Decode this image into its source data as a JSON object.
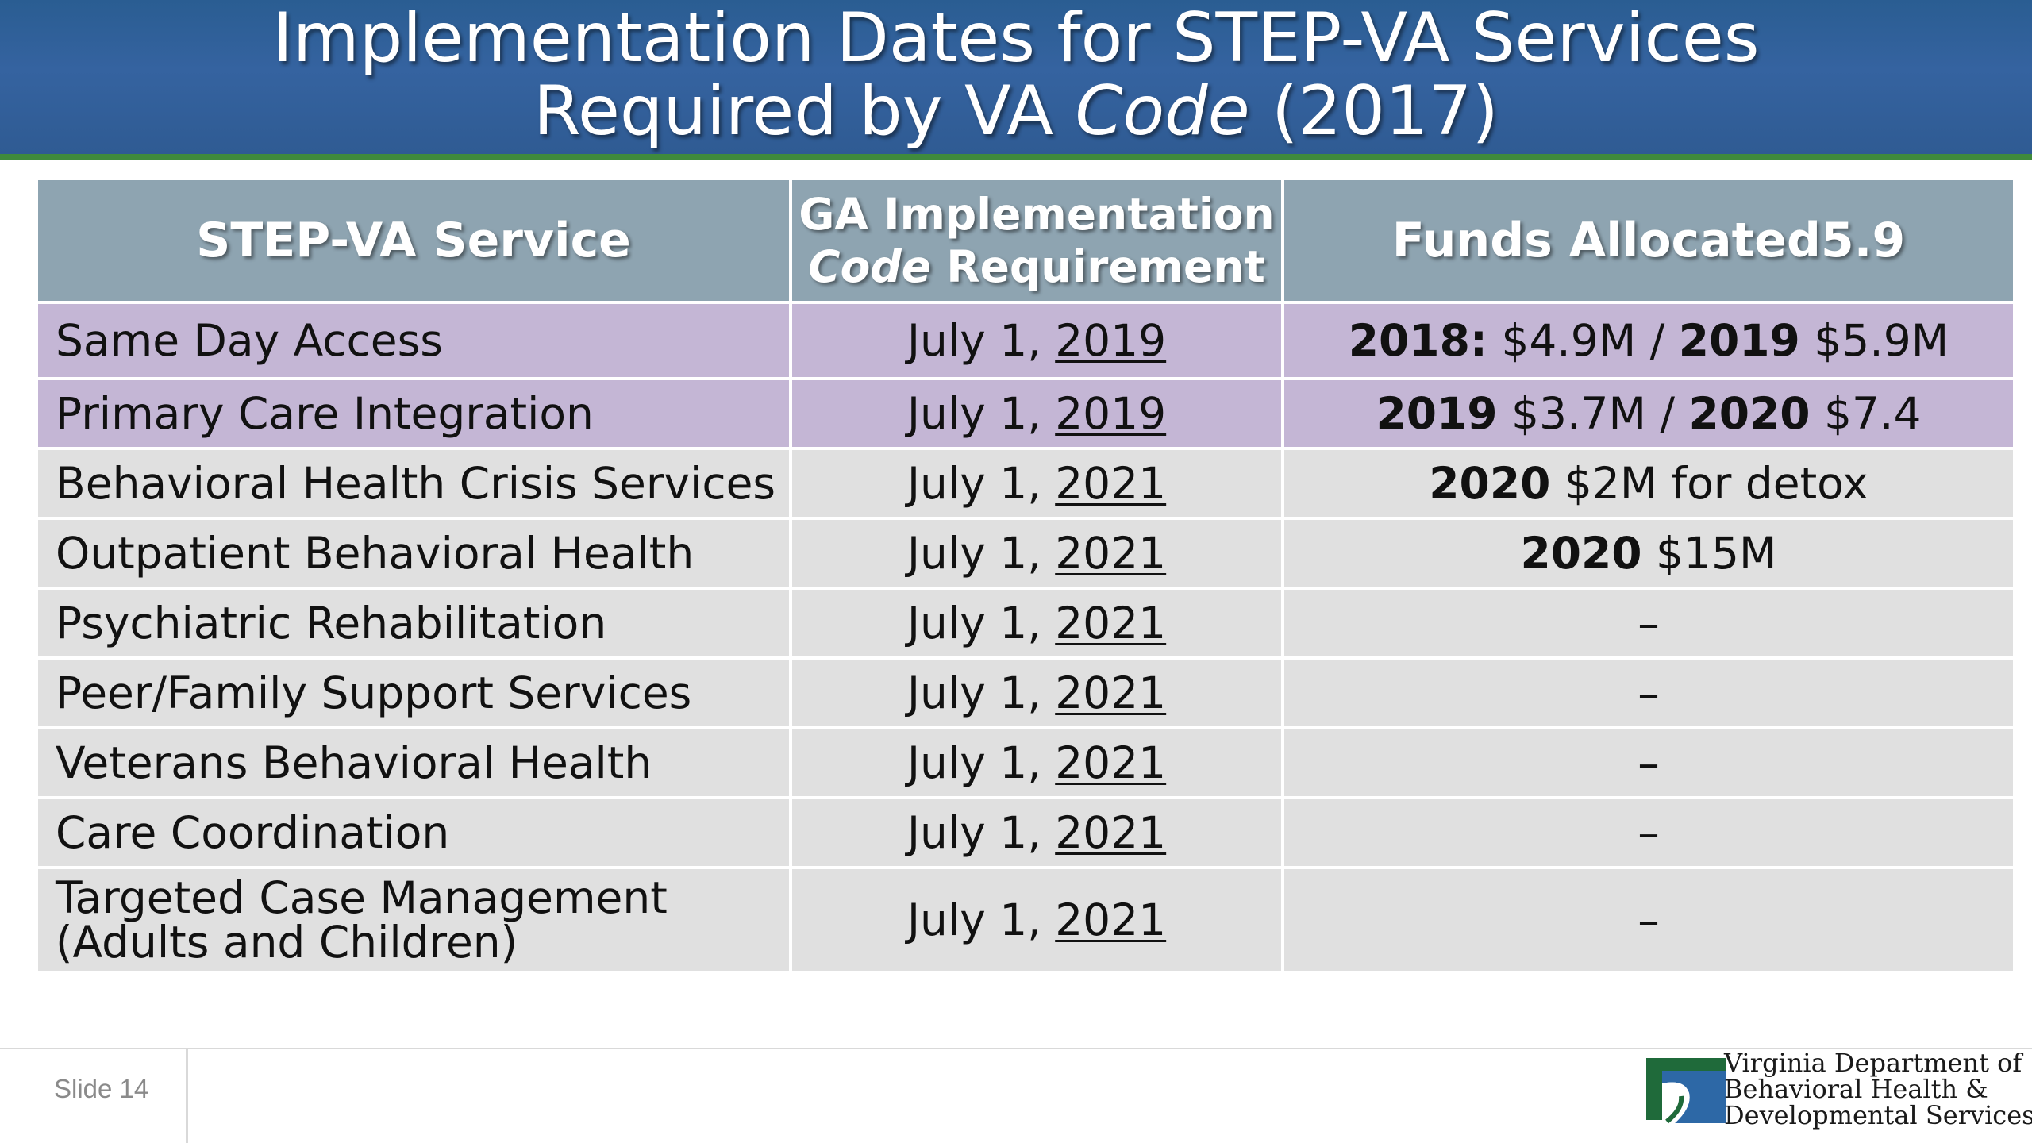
{
  "title": {
    "line1": "Implementation Dates for STEP-VA Services",
    "line2_prefix": "Required by VA ",
    "line2_italic": "Code",
    "line2_suffix": " (2017)"
  },
  "table": {
    "headers": {
      "service": "STEP-VA Service",
      "implementation_line1": "GA Implementation",
      "implementation_italic": "Code",
      "implementation_line2": " Requirement",
      "funds": "Funds Allocated5.9"
    },
    "rows": [
      {
        "service": "Same Day Access",
        "date_prefix": "July 1, ",
        "date_year": "2019",
        "funds": [
          {
            "text": "2018:",
            "bold": true
          },
          {
            "text": " $4.9M / ",
            "bold": false
          },
          {
            "text": "2019",
            "bold": true
          },
          {
            "text": " $5.9M",
            "bold": false
          }
        ],
        "highlight": true
      },
      {
        "service": "Primary Care Integration",
        "date_prefix": "July 1, ",
        "date_year": "2019",
        "funds": [
          {
            "text": "2019",
            "bold": true
          },
          {
            "text": " $3.7M / ",
            "bold": false
          },
          {
            "text": "2020",
            "bold": true
          },
          {
            "text": " $7.4",
            "bold": false
          }
        ],
        "highlight": true
      },
      {
        "service": "Behavioral Health Crisis Services",
        "date_prefix": "July 1, ",
        "date_year": "2021",
        "funds": [
          {
            "text": "2020",
            "bold": true
          },
          {
            "text": " $2M for detox",
            "bold": false
          }
        ],
        "highlight": false
      },
      {
        "service": "Outpatient Behavioral Health",
        "date_prefix": "July 1, ",
        "date_year": "2021",
        "funds": [
          {
            "text": "2020",
            "bold": true
          },
          {
            "text": " $15M",
            "bold": false
          }
        ],
        "highlight": false
      },
      {
        "service": "Psychiatric Rehabilitation",
        "date_prefix": "July 1, ",
        "date_year": "2021",
        "funds": [
          {
            "text": "–",
            "bold": false
          }
        ],
        "highlight": false
      },
      {
        "service": "Peer/Family Support Services",
        "date_prefix": "July 1, ",
        "date_year": "2021",
        "funds": [
          {
            "text": "–",
            "bold": false
          }
        ],
        "highlight": false
      },
      {
        "service": "Veterans Behavioral Health",
        "date_prefix": "July 1, ",
        "date_year": "2021",
        "funds": [
          {
            "text": "–",
            "bold": false
          }
        ],
        "highlight": false
      },
      {
        "service": "Care Coordination",
        "date_prefix": "July 1, ",
        "date_year": "2021",
        "funds": [
          {
            "text": "–",
            "bold": false
          }
        ],
        "highlight": false
      },
      {
        "service": "Targeted Case Management",
        "service_line2": "(Adults and Children)",
        "date_prefix": "July 1, ",
        "date_year": "2021",
        "funds": [
          {
            "text": "–",
            "bold": false
          }
        ],
        "highlight": false
      }
    ]
  },
  "footer": {
    "slide_label": "Slide 14",
    "org_line1": "Virginia Department of",
    "org_line2": "Behavioral Health &",
    "org_line3": "Developmental Services"
  },
  "colors": {
    "banner": "#3563a0",
    "banner_rule": "#3f8a3c",
    "header_cell": "#8ea4b1",
    "highlight_row": "#c4b6d5",
    "normal_row": "#e0e0e0"
  },
  "icons": {
    "logo": "dbhds-logo-icon"
  }
}
